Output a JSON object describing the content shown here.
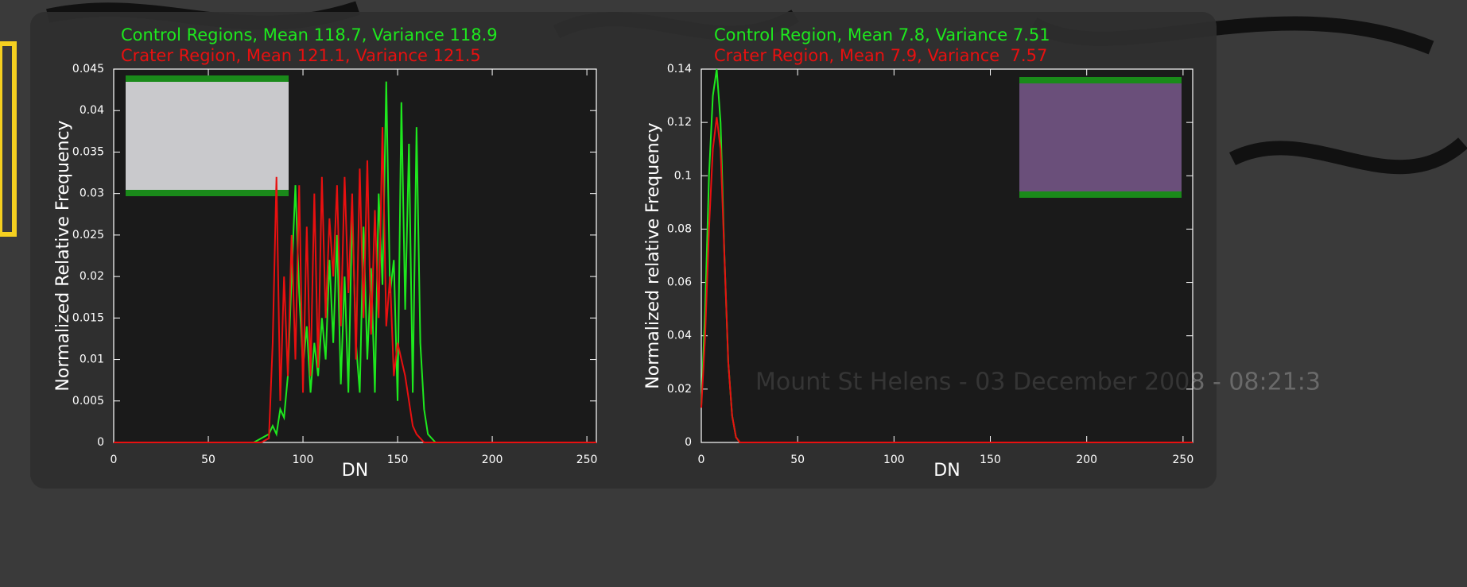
{
  "background_caption": "Mount St Helens - 03 December 2008 - 08:21:3",
  "chart_data": [
    {
      "type": "line",
      "x_label": "DN",
      "y_label": "Normalized Relative Frequency",
      "xlim": [
        0,
        255
      ],
      "xticks": [
        0,
        50,
        100,
        150,
        200,
        250
      ],
      "ylim": [
        0,
        0.045
      ],
      "yticks": [
        0,
        0.005,
        0.01,
        0.015,
        0.02,
        0.025,
        0.03,
        0.035,
        0.04,
        0.045
      ],
      "grid": false,
      "x": [
        0,
        74,
        78,
        82,
        84,
        86,
        88,
        90,
        92,
        94,
        96,
        98,
        100,
        102,
        104,
        106,
        108,
        110,
        112,
        114,
        116,
        118,
        120,
        122,
        124,
        126,
        128,
        130,
        132,
        134,
        136,
        138,
        140,
        142,
        144,
        146,
        148,
        150,
        152,
        154,
        156,
        158,
        160,
        162,
        164,
        166,
        170,
        255
      ],
      "series": [
        {
          "name": "Control Regions, Mean 118.7, Variance 118.9",
          "color": "#1ee81e",
          "values": [
            0,
            0,
            0.0005,
            0.001,
            0.002,
            0.001,
            0.004,
            0.003,
            0.008,
            0.02,
            0.031,
            0.018,
            0.009,
            0.014,
            0.006,
            0.012,
            0.008,
            0.015,
            0.01,
            0.022,
            0.012,
            0.025,
            0.007,
            0.02,
            0.006,
            0.028,
            0.012,
            0.006,
            0.026,
            0.01,
            0.021,
            0.006,
            0.03,
            0.019,
            0.0435,
            0.018,
            0.022,
            0.005,
            0.041,
            0.016,
            0.036,
            0.006,
            0.038,
            0.012,
            0.004,
            0.001,
            0,
            0
          ]
        },
        {
          "name": "Crater Region, Mean 121.1, Variance 121.5",
          "color": "#e81010",
          "values": [
            0,
            0,
            0,
            0.0005,
            0.012,
            0.032,
            0.005,
            0.02,
            0.008,
            0.025,
            0.01,
            0.031,
            0.006,
            0.026,
            0.008,
            0.03,
            0.009,
            0.032,
            0.015,
            0.027,
            0.02,
            0.031,
            0.014,
            0.032,
            0.018,
            0.03,
            0.01,
            0.033,
            0.015,
            0.034,
            0.013,
            0.028,
            0.015,
            0.038,
            0.014,
            0.02,
            0.008,
            0.012,
            0.01,
            0.008,
            0.005,
            0.002,
            0.001,
            0.0005,
            0,
            0,
            0,
            0
          ]
        }
      ]
    },
    {
      "type": "line",
      "x_label": "DN",
      "y_label": "Normalized relative Frequency",
      "xlim": [
        0,
        255
      ],
      "xticks": [
        0,
        50,
        100,
        150,
        200,
        250
      ],
      "ylim": [
        0,
        0.14
      ],
      "yticks": [
        0,
        0.02,
        0.04,
        0.06,
        0.08,
        0.1,
        0.12,
        0.14
      ],
      "grid": false,
      "x": [
        0,
        2,
        4,
        6,
        8,
        10,
        12,
        14,
        16,
        18,
        20,
        25,
        255
      ],
      "series": [
        {
          "name": "Control Region, Mean 7.8, Variance 7.51",
          "color": "#1ee81e",
          "values": [
            0.014,
            0.05,
            0.1,
            0.13,
            0.14,
            0.12,
            0.07,
            0.03,
            0.01,
            0.002,
            0,
            0,
            0
          ]
        },
        {
          "name": "Crater Region, Mean 7.9, Variance  7.57",
          "color": "#e81010",
          "values": [
            0.013,
            0.04,
            0.08,
            0.11,
            0.122,
            0.11,
            0.07,
            0.03,
            0.01,
            0.002,
            0,
            0,
            0
          ]
        }
      ]
    }
  ]
}
